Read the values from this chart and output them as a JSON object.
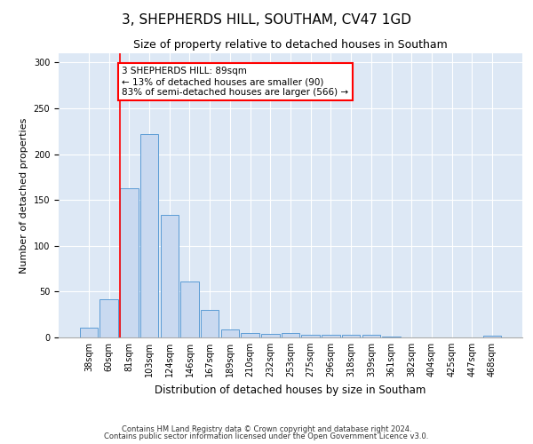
{
  "title1": "3, SHEPHERDS HILL, SOUTHAM, CV47 1GD",
  "title2": "Size of property relative to detached houses in Southam",
  "xlabel": "Distribution of detached houses by size in Southam",
  "ylabel": "Number of detached properties",
  "categories": [
    "38sqm",
    "60sqm",
    "81sqm",
    "103sqm",
    "124sqm",
    "146sqm",
    "167sqm",
    "189sqm",
    "210sqm",
    "232sqm",
    "253sqm",
    "275sqm",
    "296sqm",
    "318sqm",
    "339sqm",
    "361sqm",
    "382sqm",
    "404sqm",
    "425sqm",
    "447sqm",
    "468sqm"
  ],
  "values": [
    11,
    42,
    163,
    222,
    134,
    61,
    30,
    9,
    5,
    4,
    5,
    3,
    3,
    3,
    3,
    1,
    0,
    0,
    0,
    0,
    2
  ],
  "bar_color": "#c9d9f0",
  "bar_edge_color": "#5b9bd5",
  "red_line_x": 2,
  "annotation_text": "3 SHEPHERDS HILL: 89sqm\n← 13% of detached houses are smaller (90)\n83% of semi-detached houses are larger (566) →",
  "annotation_box_color": "white",
  "annotation_box_edge_color": "red",
  "ylim": [
    0,
    310
  ],
  "yticks": [
    0,
    50,
    100,
    150,
    200,
    250,
    300
  ],
  "background_color": "#dde8f5",
  "footer1": "Contains HM Land Registry data © Crown copyright and database right 2024.",
  "footer2": "Contains public sector information licensed under the Open Government Licence v3.0.",
  "title1_fontsize": 11,
  "title2_fontsize": 9,
  "xlabel_fontsize": 8.5,
  "ylabel_fontsize": 8,
  "tick_fontsize": 7,
  "annotation_fontsize": 7.5,
  "footer_fontsize": 6
}
